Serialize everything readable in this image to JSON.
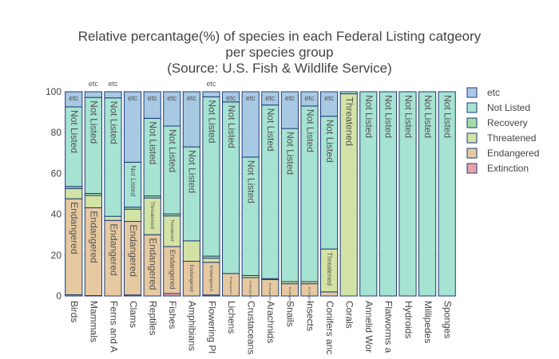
{
  "chart_data": {
    "type": "bar",
    "stacked": true,
    "title_lines": [
      "Relative percantage(%) of species in each Federal Listing catgeory",
      "per species group",
      "(Source: U.S. Fish & Wildlife Service)"
    ],
    "categories": [
      "Birds",
      "Mammals",
      "Ferns and A",
      "Clams",
      "Reptiles",
      "Fishes",
      "Amphibians",
      "Flowering Pl",
      "Lichens",
      "Crustaceans",
      "Arachnids",
      "Snails",
      "Insects",
      "Conifers anc",
      "Corals",
      "Annelid Wor",
      "Flatworms a",
      "Hydroids",
      "Millipedes",
      "Sponges"
    ],
    "ylim": [
      0,
      100
    ],
    "yticks": [
      0,
      20,
      40,
      60,
      80,
      100
    ],
    "grid": true,
    "legend_position": "right",
    "series": [
      {
        "name": "Extinction",
        "color": "#e8a3a8",
        "values": [
          0.6,
          0.2,
          0,
          0.5,
          0,
          1.2,
          0,
          0.5,
          0,
          0,
          0,
          0,
          0,
          0,
          0,
          0,
          0,
          0,
          0,
          0
        ]
      },
      {
        "name": "Endangered",
        "color": "#e6c9a0",
        "values": [
          47,
          43,
          37,
          36,
          30,
          23,
          17,
          16,
          11,
          9,
          8,
          6,
          6,
          2,
          0,
          0,
          0,
          0,
          0,
          0
        ]
      },
      {
        "name": "Threatened",
        "color": "#d3e3a5",
        "values": [
          5,
          6,
          2,
          6,
          18,
          15,
          10,
          2,
          0,
          1,
          0.5,
          1,
          1,
          21,
          99,
          0,
          0,
          0,
          0,
          0
        ]
      },
      {
        "name": "Recovery",
        "color": "#a5dda5",
        "values": [
          1,
          1,
          0,
          1,
          1,
          1,
          0,
          1,
          0,
          0,
          0,
          0,
          0,
          0,
          0,
          0,
          0,
          0,
          0,
          0
        ]
      },
      {
        "name": "Not Listed",
        "color": "#a6e3d3",
        "values": [
          39,
          47,
          58,
          22,
          38,
          43,
          46,
          78,
          84,
          58,
          85,
          75,
          86,
          65,
          1,
          100,
          100,
          100,
          100,
          100
        ]
      },
      {
        "name": "etc",
        "color": "#a8c9e3",
        "values": [
          7.4,
          2.8,
          3,
          34.5,
          13,
          16.8,
          27,
          2.5,
          5,
          32,
          6.5,
          18,
          7,
          12,
          0,
          0,
          0,
          0,
          0,
          0
        ]
      }
    ],
    "bar_labels": {
      "Endangered": [
        "Endangered",
        "Endangered",
        "Endangered",
        "Endangered",
        "Endangered",
        "Endangered",
        "Endangered",
        "Endangered",
        "Endangered",
        "Endangered",
        "Endangered",
        "Endangered",
        "Endangered",
        "",
        "",
        "",
        "",
        "",
        "",
        ""
      ],
      "Threatened": [
        "",
        "",
        "",
        "",
        "Threatened",
        "Threatened",
        "",
        "",
        "",
        "Threatened",
        "",
        "",
        "",
        "Threatened",
        "Threatened",
        "",
        "",
        "",
        "",
        ""
      ],
      "Not Listed": [
        "Not Listed",
        "Not Listed",
        "Not Listed",
        "Not Listed",
        "Not Listed",
        "Not Listed",
        "Not Listed",
        "Not Listed",
        "Not Listed",
        "Not Listed",
        "Not Listed",
        "Not Listed",
        "Not Listed",
        "Not Listed",
        "",
        "Not Listed",
        "Not Listed",
        "Not Listed",
        "Not Listed",
        "Not Listed"
      ],
      "etc": [
        "etc",
        "etc",
        "etc",
        "etc",
        "etc",
        "etc",
        "etc",
        "etc",
        "etc",
        "etc",
        "etc",
        "etc",
        "etc",
        "etc",
        "",
        "",
        "",
        "",
        "",
        ""
      ]
    },
    "legend_order": [
      "etc",
      "Not Listed",
      "Recovery",
      "Threatened",
      "Endangered",
      "Extinction"
    ]
  }
}
